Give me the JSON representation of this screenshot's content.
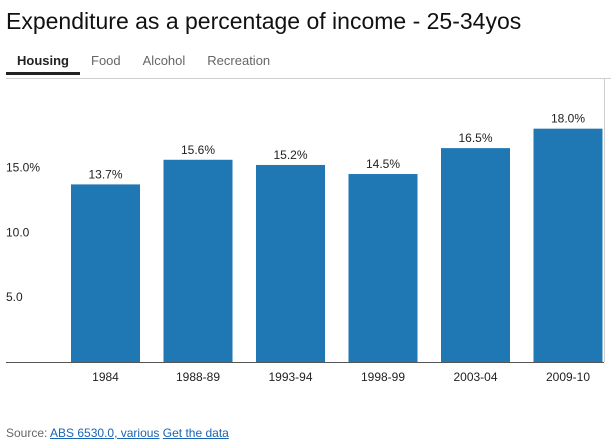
{
  "title": "Expenditure as a percentage of income - 25-34yos",
  "tabs": [
    {
      "label": "Housing",
      "active": true
    },
    {
      "label": "Food",
      "active": false
    },
    {
      "label": "Alcohol",
      "active": false
    },
    {
      "label": "Recreation",
      "active": false
    }
  ],
  "chart_data": {
    "type": "bar",
    "categories": [
      "1984",
      "1988-89",
      "1993-94",
      "1998-99",
      "2003-04",
      "2009-10"
    ],
    "values": [
      13.7,
      15.6,
      15.2,
      14.5,
      16.5,
      18.0
    ],
    "value_labels": [
      "13.7%",
      "15.6%",
      "15.2%",
      "14.5%",
      "16.5%",
      "18.0%"
    ],
    "yticks": [
      {
        "value": 5,
        "label": "5.0"
      },
      {
        "value": 10,
        "label": "10.0"
      },
      {
        "value": 15,
        "label": "15.0%"
      }
    ],
    "ylim": [
      0,
      18.9
    ],
    "title": "",
    "xlabel": "",
    "ylabel": "",
    "grid": false,
    "bar_color": "#1f77b4"
  },
  "source": {
    "prefix": "Source: ",
    "link_text": "ABS 6530.0, various",
    "get_data_text": "Get the data"
  },
  "colors": {
    "bar": "#1f77b4",
    "link": "#1a64b4"
  }
}
